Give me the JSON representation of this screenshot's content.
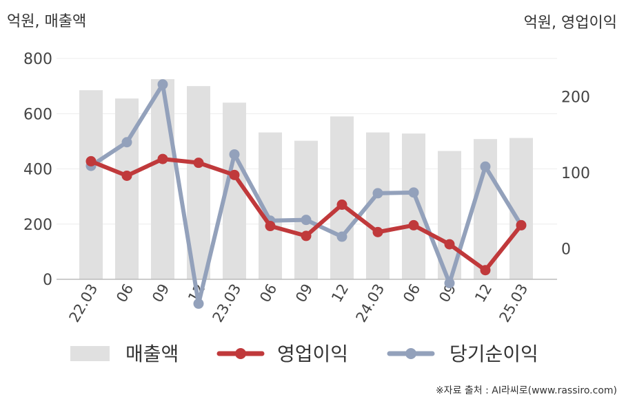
{
  "chart_data": {
    "type": "bar+line",
    "categories": [
      "22.03",
      "06",
      "09",
      "12",
      "23.03",
      "06",
      "09",
      "12",
      "24.03",
      "06",
      "09",
      "12",
      "25.03"
    ],
    "left_axis": {
      "unit_label": "억원, 매출액",
      "ylim": [
        0,
        800
      ],
      "ticks": [
        "0",
        "200",
        "400",
        "600",
        "800"
      ]
    },
    "right_axis": {
      "unit_label": "억원, 영업이익",
      "ylim": [
        -40,
        250
      ],
      "ticks": [
        "0",
        "100",
        "200"
      ]
    },
    "series": [
      {
        "name": "매출액",
        "kind": "bar",
        "axis": "left",
        "color": "#e0e0e0",
        "values": [
          685,
          655,
          725,
          700,
          640,
          532,
          502,
          590,
          532,
          528,
          465,
          508,
          512
        ]
      },
      {
        "name": "영업이익",
        "kind": "line",
        "axis": "right",
        "color": "#c0393b",
        "values": [
          115,
          96,
          118,
          113,
          97,
          30,
          17,
          58,
          22,
          31,
          6,
          -28,
          31
        ]
      },
      {
        "name": "당기순이익",
        "kind": "line",
        "axis": "right",
        "color": "#93a1bb",
        "values": [
          109,
          140,
          216,
          -72,
          124,
          37,
          38,
          16,
          73,
          74,
          -45,
          108,
          31
        ]
      }
    ],
    "legend": "bottom",
    "grid": true,
    "source": "※자료 출처 : AI라씨로(www.rassiro.com)"
  }
}
